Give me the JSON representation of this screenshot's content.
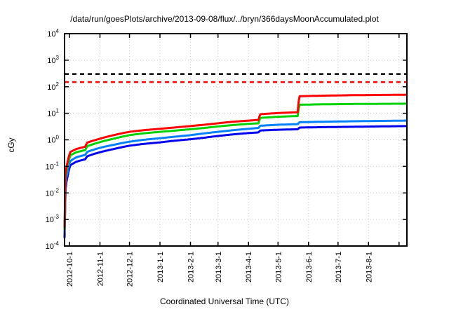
{
  "chart_data": {
    "type": "line",
    "title": "/data/run/goesPlots/archive/2013-09-08/flux/../bryn/366daysMoonAccumulated.plot",
    "xlabel": "Coordinated Universal Time (UTC)",
    "ylabel": "cGy",
    "y_scale": "log",
    "ylim": [
      0.0001,
      10000
    ],
    "y_tick_exponents": [
      4,
      3,
      2,
      1,
      0,
      -1,
      -2,
      -3,
      -4
    ],
    "x_range": [
      "2012-9-26",
      "2013-9-9"
    ],
    "x_tick_labels": [
      "2012-10-1",
      "2012-11-1",
      "2012-12-1",
      "2013-1-1",
      "2013-2-1",
      "2013-3-1",
      "2013-4-1",
      "2013-5-1",
      "2013-6-1",
      "2013-7-1",
      "2013-8-1"
    ],
    "x_unlabeled_ticks": [
      "2013-9-1"
    ],
    "grid": true,
    "legend": "none",
    "grid_color": "#c4c4c4",
    "border_color": "#000000",
    "reference_lines": [
      {
        "name": "black-dashed-line",
        "value": 300,
        "color": "#000000",
        "style": "dashed"
      },
      {
        "name": "red-dashed-line",
        "value": 150,
        "color": "#ff0000",
        "style": "dashed"
      }
    ],
    "series": [
      {
        "name": "blue",
        "color": "#0000ee",
        "points": [
          [
            "2012-9-26",
            0.0002
          ],
          [
            "2012-9-27",
            0.013
          ],
          [
            "2012-9-29",
            0.04
          ],
          [
            "2012-10-2",
            0.11
          ],
          [
            "2012-10-8",
            0.15
          ],
          [
            "2012-10-17",
            0.185
          ],
          [
            "2012-10-19",
            0.24
          ],
          [
            "2012-11-1",
            0.34
          ],
          [
            "2012-11-15",
            0.45
          ],
          [
            "2012-12-1",
            0.6
          ],
          [
            "2012-12-15",
            0.7
          ],
          [
            "2013-1-1",
            0.8
          ],
          [
            "2013-1-15",
            0.92
          ],
          [
            "2013-2-1",
            1.05
          ],
          [
            "2013-2-15",
            1.2
          ],
          [
            "2013-3-1",
            1.4
          ],
          [
            "2013-3-16",
            1.6
          ],
          [
            "2013-4-1",
            1.8
          ],
          [
            "2013-4-11",
            1.9
          ],
          [
            "2013-4-13",
            2.25
          ],
          [
            "2013-5-1",
            2.4
          ],
          [
            "2013-5-21",
            2.5
          ],
          [
            "2013-5-23",
            2.9
          ],
          [
            "2013-6-15",
            3.0
          ],
          [
            "2013-7-15",
            3.1
          ],
          [
            "2013-9-9",
            3.3
          ]
        ]
      },
      {
        "name": "light-blue",
        "color": "#0080ff",
        "points": [
          [
            "2012-9-26",
            0.0003
          ],
          [
            "2012-9-27",
            0.02
          ],
          [
            "2012-9-29",
            0.06
          ],
          [
            "2012-10-2",
            0.16
          ],
          [
            "2012-10-8",
            0.22
          ],
          [
            "2012-10-17",
            0.27
          ],
          [
            "2012-10-19",
            0.35
          ],
          [
            "2012-11-1",
            0.5
          ],
          [
            "2012-11-15",
            0.65
          ],
          [
            "2012-12-1",
            0.85
          ],
          [
            "2012-12-15",
            1.0
          ],
          [
            "2013-1-1",
            1.15
          ],
          [
            "2013-1-15",
            1.3
          ],
          [
            "2013-2-1",
            1.5
          ],
          [
            "2013-2-15",
            1.75
          ],
          [
            "2013-3-1",
            2.0
          ],
          [
            "2013-3-16",
            2.3
          ],
          [
            "2013-4-1",
            2.6
          ],
          [
            "2013-4-11",
            2.8
          ],
          [
            "2013-4-13",
            3.4
          ],
          [
            "2013-5-1",
            3.7
          ],
          [
            "2013-5-21",
            3.9
          ],
          [
            "2013-5-23",
            4.6
          ],
          [
            "2013-6-15",
            4.8
          ],
          [
            "2013-7-15",
            5.0
          ],
          [
            "2013-9-9",
            5.3
          ]
        ]
      },
      {
        "name": "green",
        "color": "#00d200",
        "points": [
          [
            "2012-9-26",
            0.0004
          ],
          [
            "2012-9-27",
            0.035
          ],
          [
            "2012-9-29",
            0.1
          ],
          [
            "2012-10-2",
            0.26
          ],
          [
            "2012-10-8",
            0.34
          ],
          [
            "2012-10-17",
            0.41
          ],
          [
            "2012-10-19",
            0.57
          ],
          [
            "2012-11-1",
            0.82
          ],
          [
            "2012-11-15",
            1.1
          ],
          [
            "2012-12-1",
            1.5
          ],
          [
            "2012-12-15",
            1.75
          ],
          [
            "2013-1-1",
            2.0
          ],
          [
            "2013-1-15",
            2.2
          ],
          [
            "2013-2-1",
            2.5
          ],
          [
            "2013-2-15",
            2.8
          ],
          [
            "2013-3-1",
            3.2
          ],
          [
            "2013-3-16",
            3.6
          ],
          [
            "2013-4-1",
            4.0
          ],
          [
            "2013-4-11",
            4.2
          ],
          [
            "2013-4-13",
            6.7
          ],
          [
            "2013-5-1",
            7.4
          ],
          [
            "2013-5-21",
            7.9
          ],
          [
            "2013-5-23",
            21.0
          ],
          [
            "2013-6-15",
            21.8
          ],
          [
            "2013-7-15",
            22.4
          ],
          [
            "2013-9-9",
            23.0
          ]
        ]
      },
      {
        "name": "red",
        "color": "#ff0000",
        "points": [
          [
            "2012-9-26",
            0.0005
          ],
          [
            "2012-9-27",
            0.05
          ],
          [
            "2012-9-29",
            0.14
          ],
          [
            "2012-10-2",
            0.35
          ],
          [
            "2012-10-8",
            0.45
          ],
          [
            "2012-10-17",
            0.55
          ],
          [
            "2012-10-19",
            0.78
          ],
          [
            "2012-11-1",
            1.1
          ],
          [
            "2012-11-15",
            1.5
          ],
          [
            "2012-12-1",
            2.0
          ],
          [
            "2012-12-15",
            2.3
          ],
          [
            "2013-1-1",
            2.6
          ],
          [
            "2013-1-15",
            2.9
          ],
          [
            "2013-2-1",
            3.3
          ],
          [
            "2013-2-15",
            3.7
          ],
          [
            "2013-3-1",
            4.2
          ],
          [
            "2013-3-16",
            4.8
          ],
          [
            "2013-4-1",
            5.3
          ],
          [
            "2013-4-11",
            5.6
          ],
          [
            "2013-4-13",
            9.2
          ],
          [
            "2013-5-1",
            10.2
          ],
          [
            "2013-5-21",
            11.0
          ],
          [
            "2013-5-23",
            44.0
          ],
          [
            "2013-6-15",
            46.0
          ],
          [
            "2013-7-15",
            48.0
          ],
          [
            "2013-9-9",
            50.0
          ]
        ]
      }
    ]
  }
}
